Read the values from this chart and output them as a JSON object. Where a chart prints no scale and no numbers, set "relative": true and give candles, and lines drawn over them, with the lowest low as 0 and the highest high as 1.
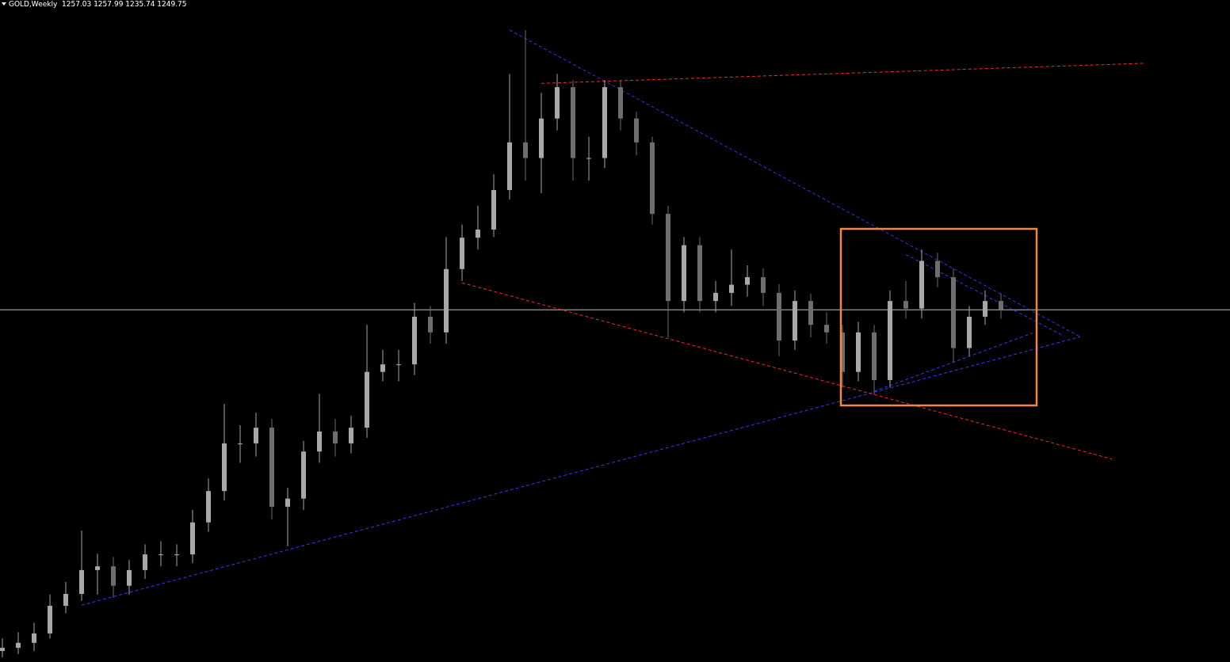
{
  "chart_data": {
    "type": "candlestick",
    "title": "GOLD,Weekly  1257.03 1257.99 1235.74 1249.75",
    "relative": true,
    "line_style": "dashed",
    "colors": [
      "#a8a8a8",
      "#a8a8a8",
      "#a8a8a8",
      "#a8a8a8",
      "#a8a8a8",
      "#a8a8a8",
      "#a8a8a8",
      "#6e6e6e",
      "#a8a8a8",
      "#a8a8a8",
      "#a8a8a8",
      "#a8a8a8",
      "#a8a8a8",
      "#a8a8a8",
      "#a8a8a8",
      "#a8a8a8",
      "#a8a8a8",
      "#6e6e6e",
      "#a8a8a8",
      "#a8a8a8",
      "#a8a8a8",
      "#6e6e6e",
      "#a8a8a8",
      "#a8a8a8",
      "#a8a8a8",
      "#a8a8a8",
      "#a8a8a8",
      "#6e6e6e",
      "#a8a8a8",
      "#a8a8a8",
      "#a8a8a8",
      "#a8a8a8",
      "#a8a8a8",
      "#6e6e6e",
      "#a8a8a8",
      "#a8a8a8",
      "#6e6e6e",
      "#a8a8a8",
      "#a8a8a8",
      "#6e6e6e",
      "#6e6e6e",
      "#6e6e6e",
      "#6e6e6e",
      "#a8a8a8",
      "#6e6e6e",
      "#a8a8a8",
      "#a8a8a8",
      "#a8a8a8",
      "#6e6e6e",
      "#6e6e6e",
      "#a8a8a8",
      "#6e6e6e",
      "#6e6e6e",
      "#6e6e6e",
      "#a8a8a8",
      "#6e6e6e",
      "#a8a8a8",
      "#6e6e6e",
      "#a8a8a8",
      "#6e6e6e",
      "#6e6e6e",
      "#a8a8a8",
      "#a8a8a8",
      "#6e6e6e",
      null,
      null,
      null,
      null,
      null,
      null,
      null,
      null,
      null
    ],
    "categories": [
      null,
      null,
      null,
      null,
      null,
      null,
      null,
      null,
      null,
      null,
      null,
      null,
      null,
      null,
      null,
      null,
      null,
      null,
      null,
      null,
      null,
      null,
      null,
      null,
      null,
      null,
      null,
      null,
      null,
      null,
      null,
      null,
      null,
      null,
      null,
      null,
      null,
      null,
      null,
      null,
      null,
      null,
      null,
      null,
      null,
      null,
      null,
      null,
      null,
      null,
      null,
      null,
      null,
      null,
      null,
      null,
      null,
      null,
      null,
      null,
      null,
      null,
      null,
      null,
      null,
      null,
      null,
      null,
      null,
      null,
      null,
      null,
      null
    ],
    "series": [
      {
        "type": "line",
        "color": "#3a3aff",
        "values": [
          null,
          null,
          null,
          null,
          null,
          null,
          null,
          null,
          null,
          null,
          null,
          null,
          null,
          null,
          null,
          null,
          null,
          null,
          null,
          null,
          null,
          null,
          null,
          null,
          null,
          null,
          null,
          null,
          null,
          null,
          null,
          null,
          1.0,
          null,
          null,
          null,
          null,
          null,
          null,
          null,
          null,
          null,
          null,
          null,
          null,
          null,
          null,
          null,
          null,
          null,
          null,
          null,
          null,
          null,
          null,
          null,
          null,
          null,
          null,
          null,
          null,
          null,
          null,
          null,
          null,
          null,
          null,
          null,
          0.511,
          null,
          null,
          null,
          null
        ]
      },
      {
        "type": "line",
        "color": "#3a3aff",
        "values": [
          null,
          null,
          null,
          null,
          null,
          0.083,
          null,
          null,
          null,
          null,
          null,
          null,
          null,
          null,
          null,
          null,
          null,
          null,
          null,
          null,
          null,
          null,
          null,
          null,
          null,
          null,
          null,
          null,
          null,
          null,
          null,
          null,
          null,
          null,
          null,
          null,
          null,
          null,
          null,
          null,
          null,
          null,
          null,
          null,
          null,
          null,
          null,
          null,
          null,
          null,
          null,
          null,
          null,
          null,
          null,
          null,
          null,
          null,
          null,
          null,
          null,
          null,
          null,
          null,
          null,
          null,
          null,
          null,
          0.511,
          null,
          null,
          null,
          null
        ]
      },
      {
        "type": "line",
        "color": "#3a3aff",
        "values": [
          null,
          null,
          null,
          null,
          null,
          null,
          null,
          null,
          null,
          null,
          null,
          null,
          null,
          null,
          null,
          null,
          null,
          null,
          null,
          null,
          null,
          null,
          null,
          null,
          null,
          null,
          null,
          null,
          null,
          null,
          null,
          null,
          null,
          null,
          null,
          null,
          null,
          null,
          null,
          null,
          null,
          null,
          null,
          null,
          null,
          null,
          null,
          null,
          null,
          null,
          null,
          null,
          null,
          null,
          null,
          null,
          null,
          0.642,
          null,
          null,
          null,
          null,
          null,
          null,
          null,
          null,
          null,
          0.512,
          null,
          null,
          null,
          null,
          null
        ]
      },
      {
        "type": "line",
        "color": "#3a3aff",
        "values": [
          null,
          null,
          null,
          null,
          null,
          null,
          null,
          null,
          null,
          null,
          null,
          null,
          null,
          null,
          null,
          null,
          null,
          null,
          null,
          null,
          null,
          null,
          null,
          null,
          null,
          null,
          null,
          null,
          null,
          null,
          null,
          null,
          null,
          null,
          null,
          null,
          null,
          null,
          null,
          null,
          null,
          null,
          null,
          null,
          null,
          null,
          null,
          null,
          null,
          null,
          null,
          null,
          null,
          null,
          null,
          0.424,
          null,
          null,
          null,
          null,
          null,
          null,
          null,
          null,
          null,
          0.517,
          null,
          null,
          null,
          null,
          null,
          null,
          null
        ]
      },
      {
        "type": "line",
        "color": "#ff2a2a",
        "values": [
          null,
          null,
          null,
          null,
          null,
          null,
          null,
          null,
          null,
          null,
          null,
          null,
          null,
          null,
          null,
          null,
          null,
          null,
          null,
          null,
          null,
          null,
          null,
          null,
          null,
          null,
          null,
          null,
          null,
          null,
          null,
          null,
          null,
          null,
          0.915,
          null,
          null,
          null,
          null,
          null,
          null,
          null,
          null,
          null,
          null,
          null,
          null,
          null,
          null,
          null,
          null,
          null,
          null,
          null,
          null,
          null,
          null,
          null,
          null,
          null,
          null,
          null,
          null,
          null,
          null,
          null,
          null,
          null,
          null,
          null,
          null,
          null,
          0.947
        ]
      },
      {
        "type": "line",
        "color": "#ff2a2a",
        "values": [
          null,
          null,
          null,
          null,
          null,
          null,
          null,
          null,
          null,
          null,
          null,
          null,
          null,
          null,
          null,
          null,
          null,
          null,
          null,
          null,
          null,
          null,
          null,
          null,
          null,
          null,
          null,
          null,
          null,
          0.597,
          null,
          null,
          null,
          null,
          null,
          null,
          null,
          null,
          null,
          null,
          null,
          null,
          null,
          null,
          null,
          null,
          null,
          null,
          null,
          null,
          null,
          null,
          null,
          null,
          null,
          null,
          null,
          null,
          null,
          null,
          null,
          null,
          null,
          null,
          null,
          null,
          null,
          null,
          null,
          null,
          0.316,
          null,
          null
        ]
      }
    ],
    "ohlc": [
      [
        0.01,
        0.03,
        0,
        0.015
      ],
      [
        0.015,
        0.04,
        0.005,
        0.023
      ],
      [
        0.023,
        0.055,
        0.01,
        0.038
      ],
      [
        0.038,
        0.1,
        0.03,
        0.082
      ],
      [
        0.082,
        0.12,
        0.07,
        0.101
      ],
      [
        0.101,
        0.202,
        0.09,
        0.139
      ],
      [
        0.139,
        0.165,
        0.1,
        0.145
      ],
      [
        0.145,
        0.16,
        0.095,
        0.114
      ],
      [
        0.114,
        0.155,
        0.1,
        0.139
      ],
      [
        0.139,
        0.18,
        0.125,
        0.164
      ],
      [
        0.164,
        0.185,
        0.145,
        0.164
      ],
      [
        0.164,
        0.18,
        0.145,
        0.164
      ],
      [
        0.164,
        0.235,
        0.15,
        0.215
      ],
      [
        0.215,
        0.285,
        0.2,
        0.265
      ],
      [
        0.265,
        0.404,
        0.25,
        0.341
      ],
      [
        0.341,
        0.37,
        0.31,
        0.341
      ],
      [
        0.341,
        0.39,
        0.32,
        0.366
      ],
      [
        0.366,
        0.38,
        0.22,
        0.24
      ],
      [
        0.24,
        0.27,
        0.177,
        0.253
      ],
      [
        0.253,
        0.345,
        0.235,
        0.328
      ],
      [
        0.328,
        0.42,
        0.31,
        0.36
      ],
      [
        0.36,
        0.38,
        0.32,
        0.341
      ],
      [
        0.341,
        0.385,
        0.325,
        0.366
      ],
      [
        0.366,
        0.53,
        0.35,
        0.455
      ],
      [
        0.455,
        0.49,
        0.44,
        0.467
      ],
      [
        0.467,
        0.49,
        0.44,
        0.467
      ],
      [
        0.467,
        0.565,
        0.45,
        0.543
      ],
      [
        0.543,
        0.56,
        0.5,
        0.518
      ],
      [
        0.518,
        0.67,
        0.5,
        0.619
      ],
      [
        0.619,
        0.69,
        0.6,
        0.669
      ],
      [
        0.669,
        0.72,
        0.65,
        0.682
      ],
      [
        0.682,
        0.77,
        0.67,
        0.745
      ],
      [
        0.745,
        0.93,
        0.73,
        0.821
      ],
      [
        0.821,
        1,
        0.76,
        0.796
      ],
      [
        0.796,
        0.9,
        0.74,
        0.859
      ],
      [
        0.859,
        0.93,
        0.84,
        0.909
      ],
      [
        0.909,
        0.92,
        0.76,
        0.796
      ],
      [
        0.796,
        0.83,
        0.76,
        0.796
      ],
      [
        0.796,
        0.92,
        0.78,
        0.909
      ],
      [
        0.909,
        0.92,
        0.84,
        0.859
      ],
      [
        0.859,
        0.87,
        0.8,
        0.821
      ],
      [
        0.821,
        0.83,
        0.69,
        0.707
      ],
      [
        0.707,
        0.72,
        0.51,
        0.568
      ],
      [
        0.568,
        0.67,
        0.55,
        0.657
      ],
      [
        0.657,
        0.67,
        0.55,
        0.568
      ],
      [
        0.568,
        0.6,
        0.55,
        0.581
      ],
      [
        0.581,
        0.65,
        0.56,
        0.594
      ],
      [
        0.594,
        0.625,
        0.575,
        0.606
      ],
      [
        0.606,
        0.62,
        0.56,
        0.581
      ],
      [
        0.581,
        0.595,
        0.48,
        0.505
      ],
      [
        0.505,
        0.585,
        0.49,
        0.568
      ],
      [
        0.568,
        0.58,
        0.51,
        0.53
      ],
      [
        0.53,
        0.55,
        0.5,
        0.518
      ],
      [
        0.518,
        0.53,
        0.43,
        0.455
      ],
      [
        0.455,
        0.535,
        0.44,
        0.518
      ],
      [
        0.518,
        0.53,
        0.419,
        0.442
      ],
      [
        0.442,
        0.585,
        0.43,
        0.568
      ],
      [
        0.568,
        0.6,
        0.54,
        0.556
      ],
      [
        0.556,
        0.65,
        0.54,
        0.632
      ],
      [
        0.632,
        0.645,
        0.59,
        0.606
      ],
      [
        0.606,
        0.62,
        0.47,
        0.493
      ],
      [
        0.493,
        0.56,
        0.48,
        0.543
      ],
      [
        0.543,
        0.585,
        0.53,
        0.568
      ],
      [
        0.568,
        0.58,
        0.54,
        0.554
      ],
      null,
      null,
      null,
      null,
      null,
      null,
      null,
      null,
      null
    ],
    "ref_lines": [
      {
        "axis": "y",
        "value": 0.554,
        "color": "#c0c0c0"
      }
    ]
  }
}
